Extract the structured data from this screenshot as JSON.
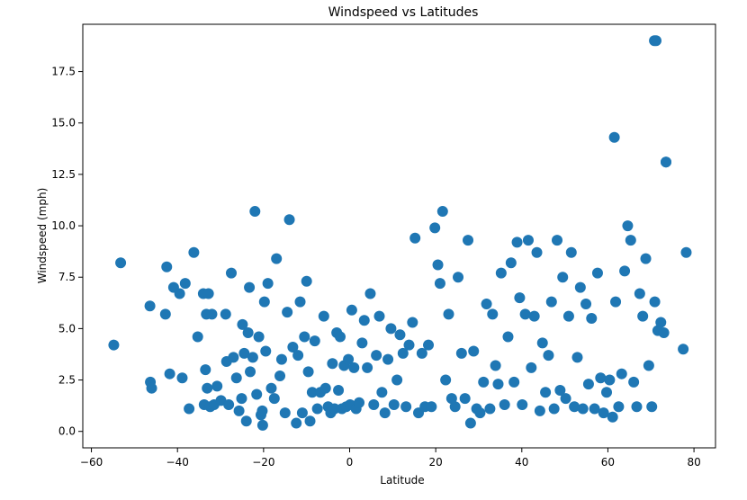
{
  "chart_data": {
    "type": "scatter",
    "title": "Windspeed vs Latitudes",
    "xlabel": "Latitude",
    "ylabel": "Windspeed (mph)",
    "xlim": [
      -62,
      85
    ],
    "ylim": [
      -0.8,
      19.8
    ],
    "xticks": [
      -60,
      -40,
      -20,
      0,
      20,
      40,
      60,
      80
    ],
    "yticks": [
      0.0,
      2.5,
      5.0,
      7.5,
      10.0,
      12.5,
      15.0,
      17.5
    ],
    "xtick_labels": [
      "−60",
      "−40",
      "−20",
      "0",
      "20",
      "40",
      "60",
      "80"
    ],
    "ytick_labels": [
      "0.0",
      "2.5",
      "5.0",
      "7.5",
      "10.0",
      "12.5",
      "15.0",
      "17.5"
    ],
    "grid": false,
    "point_color": "#1f77b4",
    "x": [
      -54.8,
      -53.2,
      -46.4,
      -46.3,
      -46.0,
      -42.8,
      -42.5,
      -41.8,
      -40.9,
      -39.5,
      -38.9,
      -38.2,
      -37.3,
      -36.2,
      -35.3,
      -34.0,
      -33.8,
      -33.5,
      -33.3,
      -33.1,
      -32.8,
      -32.4,
      -32.0,
      -31.5,
      -30.8,
      -29.9,
      -28.8,
      -28.6,
      -28.1,
      -27.5,
      -27.0,
      -26.3,
      -25.7,
      -25.1,
      -24.9,
      -24.5,
      -24.0,
      -23.6,
      -23.3,
      -23.1,
      -22.5,
      -22.0,
      -21.6,
      -21.1,
      -20.6,
      -20.3,
      -20.2,
      -19.8,
      -19.5,
      -19.0,
      -18.2,
      -17.5,
      -17.0,
      -16.2,
      -15.8,
      -15.0,
      -14.5,
      -14.0,
      -13.2,
      -12.4,
      -12.0,
      -11.5,
      -11.0,
      -10.5,
      -10.0,
      -9.6,
      -9.2,
      -8.7,
      -8.1,
      -7.5,
      -6.8,
      -6.0,
      -5.6,
      -5.0,
      -4.4,
      -4.0,
      -3.5,
      -3.0,
      -2.6,
      -2.2,
      -1.8,
      -1.3,
      -0.8,
      -0.3,
      0.1,
      0.5,
      1.0,
      1.5,
      2.2,
      2.9,
      3.4,
      4.1,
      4.8,
      5.6,
      6.2,
      6.9,
      7.5,
      8.2,
      8.9,
      9.6,
      10.3,
      11.0,
      11.7,
      12.4,
      13.1,
      13.8,
      14.6,
      15.2,
      16.0,
      16.8,
      17.5,
      18.3,
      19.0,
      19.8,
      20.5,
      21.0,
      21.6,
      22.3,
      23.0,
      23.7,
      24.5,
      25.2,
      26.0,
      26.8,
      27.5,
      28.1,
      28.8,
      29.5,
      30.3,
      31.1,
      31.8,
      32.6,
      33.2,
      33.9,
      34.5,
      35.2,
      36.0,
      36.8,
      37.5,
      38.2,
      38.9,
      39.5,
      40.1,
      40.8,
      41.5,
      42.2,
      42.9,
      43.5,
      44.2,
      44.8,
      45.5,
      46.2,
      46.9,
      47.5,
      48.2,
      48.9,
      49.5,
      50.2,
      50.9,
      51.5,
      52.2,
      52.9,
      53.6,
      54.2,
      54.9,
      55.5,
      56.2,
      56.9,
      57.6,
      58.3,
      59.0,
      59.7,
      60.4,
      61.1,
      61.8,
      62.5,
      63.2,
      63.9,
      64.6,
      65.3,
      66.0,
      66.7,
      67.4,
      68.1,
      68.8,
      69.5,
      70.2,
      70.9,
      71.6,
      72.3,
      73.0,
      73.5,
      77.5,
      78.2,
      70.8,
      71.2,
      61.5,
      73.5
    ],
    "y": [
      4.2,
      8.2,
      6.1,
      2.4,
      2.1,
      5.7,
      8.0,
      2.8,
      7.0,
      6.7,
      2.6,
      7.2,
      1.1,
      8.7,
      4.6,
      6.7,
      1.3,
      3.0,
      5.7,
      2.1,
      6.7,
      1.2,
      5.7,
      1.3,
      2.2,
      1.5,
      5.7,
      3.4,
      1.3,
      7.7,
      3.6,
      2.6,
      1.0,
      1.6,
      5.2,
      3.8,
      0.5,
      4.8,
      7.0,
      2.9,
      3.6,
      10.7,
      1.8,
      4.6,
      0.8,
      1.0,
      0.3,
      6.3,
      3.9,
      7.2,
      2.1,
      1.6,
      8.4,
      2.7,
      3.5,
      0.9,
      5.8,
      10.3,
      4.1,
      0.4,
      3.7,
      6.3,
      0.9,
      4.6,
      7.3,
      2.9,
      0.5,
      1.9,
      4.4,
      1.1,
      1.9,
      5.6,
      2.1,
      1.2,
      0.9,
      3.3,
      1.1,
      4.8,
      2.0,
      4.6,
      1.1,
      3.2,
      1.2,
      3.5,
      1.3,
      5.9,
      3.1,
      1.1,
      1.4,
      4.3,
      5.4,
      3.1,
      6.7,
      1.3,
      3.7,
      5.6,
      1.9,
      0.9,
      3.5,
      5.0,
      1.3,
      2.5,
      4.7,
      3.8,
      1.2,
      4.2,
      5.3,
      9.4,
      0.9,
      3.8,
      1.2,
      4.2,
      1.2,
      9.9,
      8.1,
      7.2,
      10.7,
      2.5,
      5.7,
      1.6,
      1.2,
      7.5,
      3.8,
      1.6,
      9.3,
      0.4,
      3.9,
      1.1,
      0.9,
      2.4,
      6.2,
      1.1,
      5.7,
      3.2,
      2.3,
      7.7,
      1.3,
      4.6,
      8.2,
      2.4,
      9.2,
      6.5,
      1.3,
      5.7,
      9.3,
      3.1,
      5.6,
      8.7,
      1.0,
      4.3,
      1.9,
      3.7,
      6.3,
      1.1,
      9.3,
      2.0,
      7.5,
      1.6,
      5.6,
      8.7,
      1.2,
      3.6,
      7.0,
      1.1,
      6.2,
      2.3,
      5.5,
      1.1,
      7.7,
      2.6,
      0.9,
      1.9,
      2.5,
      0.7,
      6.3,
      1.2,
      2.8,
      7.8,
      10.0,
      9.3,
      2.4,
      1.2,
      6.7,
      5.6,
      8.4,
      3.2,
      1.2,
      6.3,
      4.9,
      5.3,
      4.8,
      13.1,
      4.0,
      8.7,
      19.0,
      19.0,
      14.3,
      13.1
    ]
  }
}
